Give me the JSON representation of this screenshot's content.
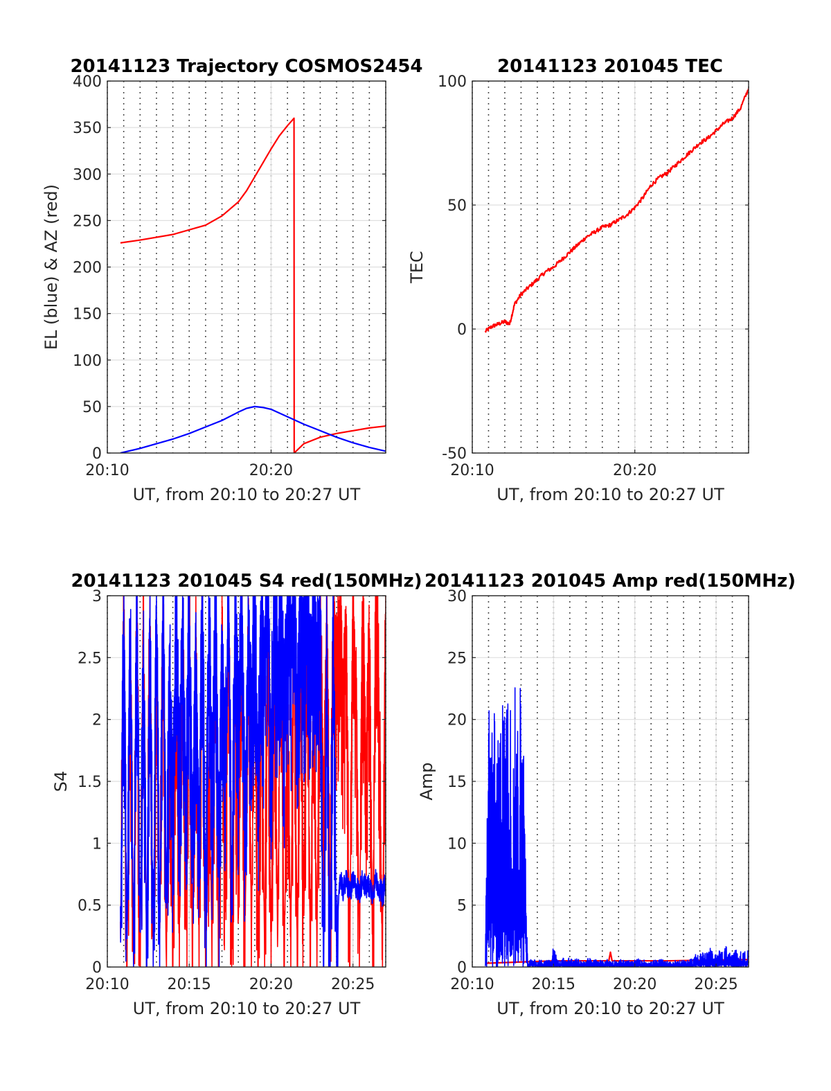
{
  "chart_data": [
    {
      "type": "line",
      "title": "20141123 Trajectory COSMOS2454",
      "xlabel": "UT, from 20:10 to 20:27 UT",
      "ylabel": "EL (blue) & AZ (red)",
      "xlim": [
        0,
        17
      ],
      "ylim": [
        0,
        400
      ],
      "xticks": [
        0,
        10
      ],
      "xticklabels": [
        "20:10",
        "20:20"
      ],
      "yticks": [
        0,
        50,
        100,
        150,
        200,
        250,
        300,
        350,
        400
      ],
      "grid": true,
      "series": [
        {
          "color": "#ff0000",
          "x": [
            0.8,
            2,
            4,
            6,
            7,
            8,
            8.5,
            9,
            9.5,
            10,
            10.5,
            11,
            11.4,
            11.41,
            12,
            13,
            14,
            15,
            16,
            17
          ],
          "y": [
            226,
            229,
            235,
            245,
            255,
            270,
            282,
            297,
            312,
            327,
            341,
            352,
            360,
            0,
            10,
            17,
            21,
            24,
            27,
            29
          ]
        },
        {
          "color": "#0000ff",
          "x": [
            0.8,
            2,
            3,
            4,
            5,
            6,
            7,
            8,
            8.5,
            9,
            9.5,
            10,
            11,
            12,
            13,
            14,
            15,
            16,
            17
          ],
          "y": [
            0,
            5,
            10,
            15,
            21,
            28,
            35,
            44,
            48,
            50,
            49,
            47,
            39,
            31,
            24,
            17,
            11,
            6,
            2
          ]
        }
      ]
    },
    {
      "type": "line",
      "title": "20141123 201045 TEC",
      "xlabel": "UT, from 20:10 to 20:27 UT",
      "ylabel": "TEC",
      "xlim": [
        0,
        17
      ],
      "ylim": [
        -50,
        100
      ],
      "xticks": [
        0,
        10
      ],
      "xticklabels": [
        "20:10",
        "20:20"
      ],
      "yticks": [
        -50,
        0,
        50,
        100
      ],
      "grid": true,
      "series": [
        {
          "color": "#ff0000",
          "x": [
            0.8,
            1.2,
            1.6,
            2,
            2.3,
            2.6,
            3,
            3.5,
            4,
            4.5,
            5,
            5.5,
            6,
            6.5,
            7,
            7.5,
            8,
            8.5,
            9,
            9.5,
            10,
            10.5,
            11,
            11.5,
            12,
            12.5,
            13,
            13.5,
            14,
            14.5,
            15,
            15.5,
            16,
            16.5,
            17
          ],
          "y": [
            -1,
            1,
            2,
            3,
            2,
            10,
            14,
            17,
            20,
            23,
            25,
            28,
            31,
            34,
            37,
            39,
            41,
            42,
            44,
            46,
            49,
            53,
            58,
            61,
            63,
            66,
            69,
            72,
            75,
            77,
            80,
            83,
            85,
            89,
            97
          ]
        }
      ]
    },
    {
      "type": "line",
      "title": "20141123 201045 S4 red(150MHz)",
      "xlabel": "UT, from 20:10 to 20:27 UT",
      "ylabel": "S4",
      "xlim": [
        0,
        17
      ],
      "ylim": [
        0,
        3
      ],
      "xticks": [
        0,
        5,
        10,
        15
      ],
      "xticklabels": [
        "20:10",
        "20:15",
        "20:20",
        "20:25"
      ],
      "yticks": [
        0,
        0.5,
        1,
        1.5,
        2,
        2.5,
        3
      ],
      "grid": true,
      "series": [
        {
          "color": "#ff0000",
          "x": [
            0.8,
            1.0,
            1.2,
            1.4,
            1.6,
            1.8,
            2.0,
            2.2,
            2.4,
            2.6,
            2.8,
            3.0,
            3.2,
            3.4,
            3.6,
            3.8,
            4.0,
            4.2,
            4.4,
            4.6,
            4.8,
            5.0,
            5.2,
            5.4,
            5.6,
            5.8,
            6.0,
            6.2,
            6.4,
            6.6,
            6.8,
            7.0,
            7.2,
            7.4,
            7.6,
            7.8,
            8.0,
            8.2,
            8.4,
            8.6,
            8.8,
            9.0,
            9.2,
            9.4,
            9.6,
            9.8,
            10.0,
            10.2,
            10.4,
            10.6,
            10.8,
            11.0,
            11.2,
            11.4,
            11.6,
            11.8,
            12.0,
            12.2,
            12.4,
            12.6,
            12.8,
            13.0,
            13.2,
            13.4,
            13.6,
            13.8,
            14.0,
            14.2,
            14.4,
            14.6,
            14.8,
            15.0,
            15.2,
            15.4,
            15.6,
            15.8,
            16.0,
            16.2,
            16.4,
            16.6,
            16.8,
            17.0
          ],
          "y": [
            0.1,
            3,
            0,
            2.5,
            0.2,
            3,
            0,
            2.8,
            0.1,
            3,
            0,
            2.6,
            0.3,
            3,
            0,
            2.2,
            0.1,
            3,
            0,
            2.9,
            0.2,
            3,
            0,
            2.7,
            0.1,
            3,
            0,
            1.5,
            0.2,
            3,
            0,
            2.8,
            0.5,
            3,
            0,
            2.4,
            0.3,
            3,
            0,
            2.9,
            0.2,
            3,
            0,
            2.6,
            0.1,
            3,
            0,
            2.8,
            0.2,
            3,
            0,
            2.3,
            0.1,
            3,
            0,
            2.7,
            0.4,
            3,
            0,
            2.5,
            0.2,
            3,
            1.0,
            2.9,
            0.6,
            2.8,
            2.4,
            3,
            2.0,
            2.6,
            0.0,
            3,
            2.2,
            0.1,
            3,
            1.6,
            2.8,
            0,
            3,
            2.0,
            0,
            3
          ],
          "samples": 1400
        },
        {
          "color": "#0000ff",
          "x": [
            0.8,
            1.0,
            1.2,
            1.4,
            1.6,
            1.8,
            2.0,
            2.2,
            2.4,
            2.6,
            2.8,
            3.0,
            3.2,
            3.4,
            3.6,
            3.8,
            4.0,
            4.2,
            4.4,
            4.6,
            4.8,
            5.0,
            5.2,
            5.4,
            5.6,
            5.8,
            6.0,
            6.2,
            6.4,
            6.6,
            6.8,
            7.0,
            7.2,
            7.4,
            7.6,
            7.8,
            8.0,
            8.2,
            8.4,
            8.6,
            8.8,
            9.0,
            9.2,
            9.4,
            9.6,
            9.8,
            10.0,
            10.2,
            10.4,
            10.6,
            10.8,
            11.0,
            11.2,
            11.4,
            11.6,
            11.8,
            12.0,
            12.2,
            12.4,
            12.6,
            12.8,
            13.0,
            13.2,
            13.4,
            13.6,
            13.8,
            14.0,
            14.2,
            14.4,
            14.6,
            14.8,
            15.0,
            15.2,
            15.4,
            15.6,
            15.8,
            16.0,
            16.2,
            16.4,
            16.6,
            16.8,
            17.0
          ],
          "y": [
            0.1,
            3,
            0.2,
            2.8,
            0.1,
            3,
            0.2,
            2.6,
            0.1,
            3,
            0.1,
            2.9,
            0.2,
            3,
            0.5,
            2.4,
            1.2,
            3,
            1.4,
            2.7,
            1.3,
            3,
            0.8,
            2.5,
            1.1,
            3,
            0.6,
            2.8,
            1.5,
            3,
            0.9,
            2.6,
            1.6,
            3,
            0.7,
            2.9,
            1.8,
            3,
            1.2,
            2.7,
            1.9,
            3,
            1.5,
            2.8,
            2.2,
            3,
            1.8,
            2.9,
            2.4,
            3,
            2.0,
            2.7,
            2.5,
            3,
            1.9,
            2.8,
            2.6,
            3,
            2.2,
            2.9,
            2.4,
            3,
            0.0,
            2.7,
            0.0,
            2.8,
            0.0,
            0.75,
            0.62,
            0.7,
            0.6,
            0.68,
            0.65,
            0.6,
            0.72,
            0.63,
            0.66,
            0.6,
            0.7,
            0.64,
            0.58,
            0.68
          ],
          "samples": 1400
        }
      ]
    },
    {
      "type": "line",
      "title": "20141123 201045 Amp red(150MHz)",
      "xlabel": "UT, from 20:10 to 20:27 UT",
      "ylabel": "Amp",
      "xlim": [
        0,
        17
      ],
      "ylim": [
        0,
        30
      ],
      "xticks": [
        0,
        5,
        10,
        15
      ],
      "xticklabels": [
        "20:10",
        "20:15",
        "20:20",
        "20:25"
      ],
      "yticks": [
        0,
        5,
        10,
        15,
        20,
        25,
        30
      ],
      "grid": true,
      "series": [
        {
          "color": "#ff0000",
          "x": [
            0.8,
            5,
            8.4,
            8.5,
            8.6,
            12,
            17
          ],
          "y": [
            0.3,
            0.5,
            0.5,
            1.2,
            0.5,
            0.5,
            0.6
          ]
        },
        {
          "color": "#0000ff",
          "x": [
            0.8,
            1.0,
            1.2,
            1.4,
            1.6,
            1.8,
            2.0,
            2.2,
            2.4,
            2.6,
            2.8,
            3.0,
            3.2,
            3.4,
            3.6,
            3.8,
            4.0,
            4.2,
            4.4,
            4.6,
            4.8,
            5.0,
            5.2,
            5.4,
            5.6,
            5.8,
            6.0,
            6.2,
            6.4,
            6.6,
            6.8,
            7.0,
            7.2,
            7.4,
            7.6,
            7.8,
            8.0,
            8.2,
            8.4,
            8.6,
            8.8,
            9.0,
            9.2,
            9.4,
            9.6,
            9.8,
            10.0,
            10.2,
            10.4,
            10.6,
            10.8,
            11.0,
            11.2,
            11.4,
            11.6,
            11.8,
            12.0,
            12.2,
            12.4,
            12.6,
            12.8,
            13.0,
            13.2,
            13.4,
            13.6,
            13.8,
            14.0,
            14.2,
            14.4,
            14.6,
            14.8,
            15.0,
            15.2,
            15.4,
            15.6,
            15.8,
            16.0,
            16.2,
            16.4,
            16.6,
            16.8,
            17.0
          ],
          "y": [
            0.3,
            25.0,
            23.0,
            21.0,
            23.5,
            21.5,
            22.0,
            22.5,
            21.0,
            22.0,
            26.0,
            21.5,
            23.0,
            0.3,
            0.7,
            0.8,
            0.5,
            0.6,
            0.4,
            0.9,
            0.6,
            2.0,
            0.7,
            0.5,
            0.8,
            0.6,
            0.9,
            0.5,
            0.7,
            0.6,
            0.5,
            0.6,
            0.8,
            0.5,
            0.7,
            0.6,
            0.5,
            0.7,
            0.6,
            0.5,
            0.6,
            0.5,
            0.7,
            0.5,
            0.6,
            0.4,
            0.6,
            0.7,
            0.5,
            0.6,
            0.5,
            0.4,
            0.6,
            0.5,
            0.7,
            0.5,
            0.6,
            0.4,
            0.5,
            0.6,
            0.5,
            0.7,
            0.5,
            0.6,
            0.8,
            1.2,
            1.5,
            1.3,
            1.1,
            1.6,
            1.2,
            1.0,
            1.4,
            1.3,
            1.8,
            1.2,
            1.1,
            1.5,
            1.3,
            1.2,
            1.4,
            1.3
          ],
          "samples": 1400
        }
      ]
    }
  ]
}
